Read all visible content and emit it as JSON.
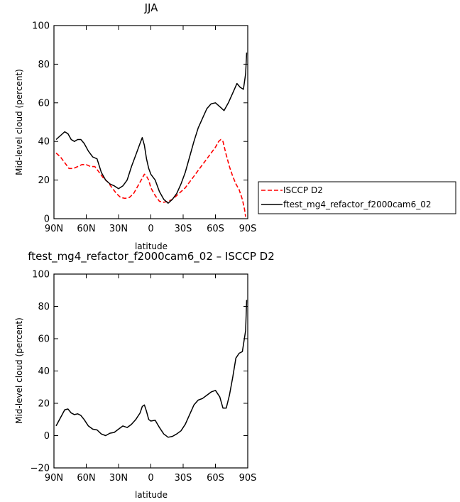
{
  "chart_data": [
    {
      "type": "line",
      "title": "JJA",
      "xlabel": "latitude",
      "ylabel": "Mid-level cloud (percent)",
      "ylim": [
        0,
        100
      ],
      "yticks": [
        0,
        20,
        40,
        60,
        80,
        100
      ],
      "xlim": [
        90,
        -90
      ],
      "xtick_values": [
        90,
        60,
        30,
        0,
        -30,
        -60,
        -90
      ],
      "xtick_labels": [
        "90N",
        "60N",
        "30N",
        "0",
        "30S",
        "60S",
        "90S"
      ],
      "legend_position": "right",
      "series": [
        {
          "name": "ISCCP D2",
          "color": "#ff0000",
          "style": "dashed",
          "x": [
            88,
            84,
            80,
            76,
            72,
            68,
            64,
            60,
            56,
            52,
            48,
            44,
            40,
            36,
            32,
            28,
            24,
            20,
            16,
            12,
            8,
            6,
            4,
            2,
            0,
            -4,
            -8,
            -12,
            -16,
            -20,
            -24,
            -28,
            -32,
            -36,
            -40,
            -44,
            -48,
            -52,
            -56,
            -60,
            -63,
            -65,
            -67,
            -70,
            -73,
            -76,
            -79,
            -82,
            -85,
            -87,
            -88
          ],
          "y": [
            34,
            32,
            29,
            26,
            26,
            27,
            28,
            28,
            27,
            27,
            24,
            21,
            19,
            16,
            13,
            11,
            10.5,
            11,
            13,
            17,
            21,
            23,
            22,
            20,
            16,
            12,
            9,
            8.5,
            9,
            10,
            12,
            14,
            16,
            19,
            22,
            25,
            28,
            31,
            34,
            37,
            40,
            41,
            40,
            33,
            27,
            22,
            18,
            15,
            10,
            5,
            1
          ]
        },
        {
          "name": "ftest_mg4_refactor_f2000cam6_02",
          "color": "#000000",
          "style": "solid",
          "x": [
            88,
            84,
            80,
            77,
            74,
            71,
            68,
            65,
            62,
            58,
            54,
            50,
            46,
            42,
            38,
            34,
            30,
            26,
            22,
            18,
            14,
            10,
            8,
            6,
            4,
            2,
            0,
            -4,
            -8,
            -12,
            -16,
            -20,
            -24,
            -28,
            -32,
            -36,
            -40,
            -44,
            -48,
            -52,
            -56,
            -60,
            -64,
            -68,
            -72,
            -76,
            -80,
            -83,
            -86,
            -88,
            -89
          ],
          "y": [
            41,
            43,
            45,
            44,
            41,
            40,
            41,
            41,
            39,
            35,
            32,
            31,
            24,
            20,
            18,
            17,
            15.5,
            17,
            20,
            27,
            33,
            39,
            42,
            38,
            31,
            26,
            23,
            20,
            14,
            10,
            8,
            10,
            13,
            18,
            24,
            32,
            40,
            47,
            52,
            57,
            59.5,
            60,
            58,
            56,
            60,
            65,
            70,
            68,
            67,
            75,
            86
          ]
        }
      ]
    },
    {
      "type": "line",
      "title": "ftest_mg4_refactor_f2000cam6_02 – ISCCP D2",
      "xlabel": "latitude",
      "ylabel": "Mid-level cloud (percent)",
      "ylim": [
        -20,
        100
      ],
      "yticks": [
        -20,
        0,
        20,
        40,
        60,
        80,
        100
      ],
      "xlim": [
        90,
        -90
      ],
      "xtick_values": [
        90,
        60,
        30,
        0,
        -30,
        -60,
        -90
      ],
      "xtick_labels": [
        "90N",
        "60N",
        "30N",
        "0",
        "30S",
        "60S",
        "90S"
      ],
      "series": [
        {
          "name": "",
          "color": "#000000",
          "style": "solid",
          "x": [
            88,
            84,
            80,
            77,
            74,
            71,
            68,
            65,
            62,
            58,
            54,
            50,
            46,
            42,
            38,
            34,
            30,
            26,
            22,
            18,
            14,
            10,
            8,
            6,
            4,
            2,
            0,
            -4,
            -8,
            -12,
            -16,
            -20,
            -24,
            -28,
            -32,
            -36,
            -40,
            -44,
            -48,
            -52,
            -56,
            -60,
            -64,
            -67,
            -70,
            -73,
            -76,
            -79,
            -82,
            -85,
            -88,
            -89
          ],
          "y": [
            6,
            11,
            16,
            16.5,
            14,
            13,
            13.5,
            12.5,
            10,
            6,
            4,
            3.5,
            1,
            0,
            1.5,
            2,
            4,
            6,
            5,
            7,
            10,
            14,
            18,
            19,
            15,
            10,
            9,
            9.5,
            5,
            1,
            -1,
            -0.5,
            1,
            3,
            7,
            13,
            19,
            22,
            23,
            25,
            27,
            28,
            24,
            17,
            17,
            25,
            36,
            48,
            51,
            52,
            65,
            84
          ]
        }
      ]
    }
  ]
}
